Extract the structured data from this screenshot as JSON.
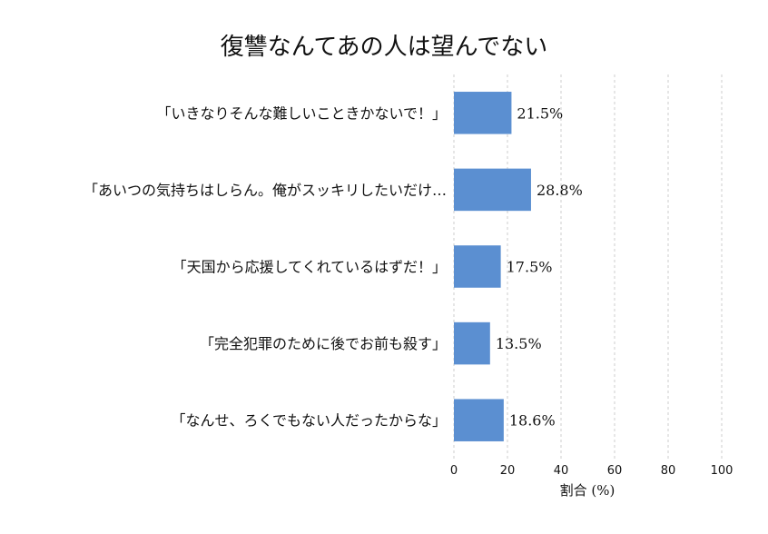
{
  "chart_data": {
    "type": "bar",
    "orientation": "horizontal",
    "title": "復讐なんてあの人は望んでない",
    "xlabel": "割合 (%)",
    "ylabel": "",
    "categories": [
      "「いきなりそんな難しいこときかないで！」",
      "「あいつの気持ちはしらん。俺がスッキリしたいだけ…",
      "「天国から応援してくれているはずだ！」",
      "「完全犯罪のために後でお前も殺す」",
      "「なんせ、ろくでもない人だったからな」"
    ],
    "values": [
      21.5,
      28.8,
      17.5,
      13.5,
      18.6
    ],
    "value_labels": [
      "21.5%",
      "28.8%",
      "17.5%",
      "13.5%",
      "18.6%"
    ],
    "xlim": [
      0,
      100
    ],
    "xticks": [
      0,
      20,
      40,
      60,
      80,
      100
    ],
    "grid": "x-dashed",
    "bar_color": "#5b8fd1"
  }
}
